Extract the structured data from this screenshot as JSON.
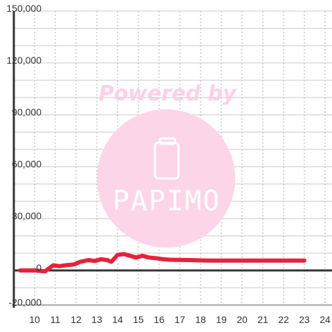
{
  "chart_data": {
    "type": "line",
    "title": "",
    "xlabel": "",
    "ylabel": "",
    "x_ticks": [
      10,
      11,
      12,
      13,
      14,
      15,
      16,
      17,
      18,
      19,
      20,
      21,
      22,
      23,
      24
    ],
    "y_ticks": [
      "150,000",
      "120,000",
      "90,000",
      "60,000",
      "30,000",
      "0",
      "-20,000"
    ],
    "y_tick_values": [
      150000,
      120000,
      90000,
      60000,
      30000,
      0,
      -20000
    ],
    "xlim": [
      9.3,
      24.5
    ],
    "ylim": [
      -20000,
      150000
    ],
    "grid": true,
    "legend": "none",
    "series": [
      {
        "color": "#e8213a",
        "x": [
          9.3,
          10.0,
          10.5,
          10.9,
          11.2,
          11.5,
          11.9,
          12.2,
          12.6,
          12.9,
          13.2,
          13.5,
          13.7,
          14.0,
          14.3,
          14.6,
          14.9,
          15.2,
          15.5,
          15.9,
          16.2,
          16.5,
          16.9,
          17.5,
          18.0,
          18.5,
          19.0,
          20.0,
          21.0,
          22.0,
          23.0
        ],
        "y": [
          0,
          0,
          -500,
          3000,
          2500,
          3000,
          3500,
          5000,
          6000,
          5500,
          6500,
          6000,
          5000,
          9000,
          9500,
          8500,
          7500,
          8500,
          7500,
          7000,
          6500,
          6200,
          6100,
          6000,
          5800,
          5700,
          5700,
          5700,
          5700,
          5700,
          5700
        ]
      }
    ]
  },
  "watermark": {
    "text": "Powered by",
    "brand": "PAPIMO",
    "circle_color": "#fdd5e8",
    "text_color": "#ffc8e2"
  }
}
